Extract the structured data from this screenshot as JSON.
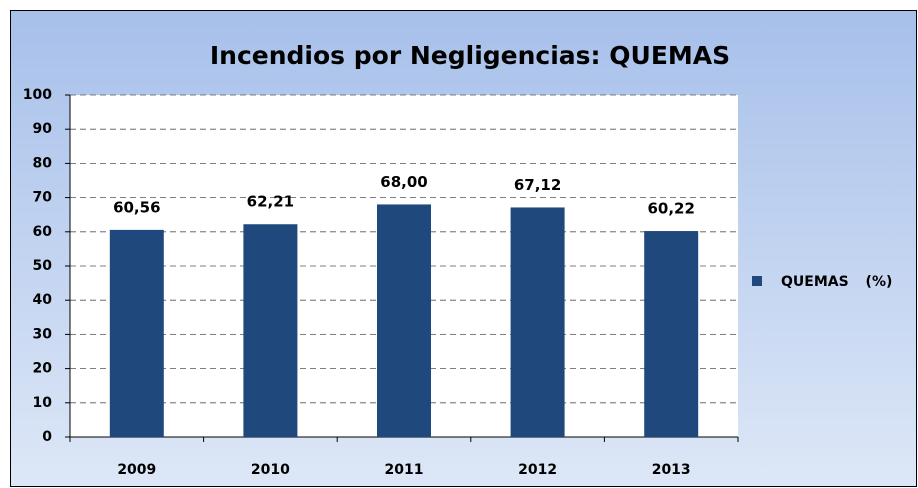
{
  "chart_data": {
    "type": "bar",
    "title": "Incendios por Negligencias: QUEMAS",
    "categories": [
      "2009",
      "2010",
      "2011",
      "2012",
      "2013"
    ],
    "series": [
      {
        "name": "QUEMAS (%)",
        "color": "#1f497d",
        "values": [
          60.56,
          62.21,
          68.0,
          67.12,
          60.22
        ],
        "value_labels": [
          "60,56",
          "62,21",
          "68,00",
          "67,12",
          "60,22"
        ]
      }
    ],
    "ylim": [
      0,
      100
    ],
    "yticks": [
      0,
      10,
      20,
      30,
      40,
      50,
      60,
      70,
      80,
      90,
      100
    ],
    "grid": true,
    "legend": "right"
  }
}
